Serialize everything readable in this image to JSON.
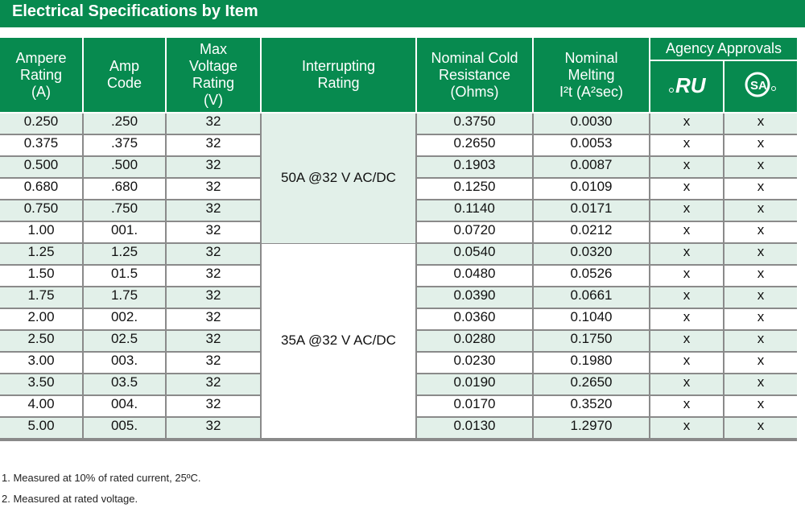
{
  "title": "Electrical Specifications by Item",
  "headers": {
    "ampere_rating": [
      "Ampere",
      "Rating",
      "(A)"
    ],
    "amp_code": [
      "Amp",
      "Code"
    ],
    "max_voltage": [
      "Max",
      "Voltage",
      "Rating",
      "(V)"
    ],
    "interrupting": [
      "Interrupting",
      "Rating"
    ],
    "cold_resistance": [
      "Nominal Cold",
      "Resistance",
      "(Ohms)"
    ],
    "melting": [
      "Nominal",
      "Melting",
      "I²t (A²sec)"
    ],
    "agency": "Agency Approvals",
    "agency_icons": [
      "ul-recognized-icon",
      "csa-icon"
    ]
  },
  "interrupting_groups": [
    "50A @32 V AC/DC",
    "35A @32 V AC/DC"
  ],
  "rows": [
    [
      "0.250",
      ".250",
      "32",
      "0.3750",
      "0.0030",
      "x",
      "x"
    ],
    [
      "0.375",
      ".375",
      "32",
      "0.2650",
      "0.0053",
      "x",
      "x"
    ],
    [
      "0.500",
      ".500",
      "32",
      "0.1903",
      "0.0087",
      "x",
      "x"
    ],
    [
      "0.680",
      ".680",
      "32",
      "0.1250",
      "0.0109",
      "x",
      "x"
    ],
    [
      "0.750",
      ".750",
      "32",
      "0.1140",
      "0.0171",
      "x",
      "x"
    ],
    [
      "1.00",
      "001.",
      "32",
      "0.0720",
      "0.0212",
      "x",
      "x"
    ],
    [
      "1.25",
      "1.25",
      "32",
      "0.0540",
      "0.0320",
      "x",
      "x"
    ],
    [
      "1.50",
      "01.5",
      "32",
      "0.0480",
      "0.0526",
      "x",
      "x"
    ],
    [
      "1.75",
      "1.75",
      "32",
      "0.0390",
      "0.0661",
      "x",
      "x"
    ],
    [
      "2.00",
      "002.",
      "32",
      "0.0360",
      "0.1040",
      "x",
      "x"
    ],
    [
      "2.50",
      "02.5",
      "32",
      "0.0280",
      "0.1750",
      "x",
      "x"
    ],
    [
      "3.00",
      "003.",
      "32",
      "0.0230",
      "0.1980",
      "x",
      "x"
    ],
    [
      "3.50",
      "03.5",
      "32",
      "0.0190",
      "0.2650",
      "x",
      "x"
    ],
    [
      "4.00",
      "004.",
      "32",
      "0.0170",
      "0.3520",
      "x",
      "x"
    ],
    [
      "5.00",
      "005.",
      "32",
      "0.0130",
      "1.2970",
      "x",
      "x"
    ]
  ],
  "notes": [
    "1.  Measured at 10% of rated current, 25ºC.",
    "2. Measured at rated voltage."
  ],
  "colors": {
    "header_green": "#078a4f",
    "row_shade": "#e2f0e9"
  }
}
